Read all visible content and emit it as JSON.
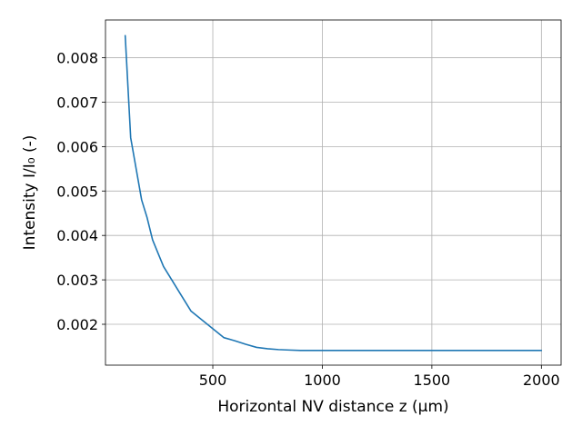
{
  "chart_data": {
    "type": "line",
    "title": "",
    "xlabel": "Horizontal NV distance z (μm)",
    "ylabel": "Intensity I/I₀ (-)",
    "xlim": [
      10,
      2090
    ],
    "ylim": [
      0.00108,
      0.00885
    ],
    "x_ticks": [
      500,
      1000,
      1500,
      2000
    ],
    "x_tick_labels": [
      "500",
      "1000",
      "1500",
      "2000"
    ],
    "y_ticks": [
      0.002,
      0.003,
      0.004,
      0.005,
      0.006,
      0.007,
      0.008
    ],
    "y_tick_labels": [
      "0.002",
      "0.003",
      "0.004",
      "0.005",
      "0.006",
      "0.007",
      "0.008"
    ],
    "grid": true,
    "legend": "none",
    "series": [
      {
        "color": "#1f77b4",
        "x": [
          100,
          125,
          150,
          175,
          200,
          225,
          250,
          275,
          300,
          350,
          400,
          450,
          500,
          550,
          600,
          650,
          700,
          750,
          800,
          850,
          900,
          1000,
          1200,
          1400,
          1600,
          1800,
          2000
        ],
        "y": [
          0.0085,
          0.0062,
          0.0055,
          0.0048,
          0.0044,
          0.0039,
          0.0036,
          0.0033,
          0.0031,
          0.0027,
          0.0023,
          0.0021,
          0.0019,
          0.0017,
          0.00163,
          0.00155,
          0.00148,
          0.00145,
          0.00143,
          0.00142,
          0.00141,
          0.00141,
          0.00141,
          0.00141,
          0.00141,
          0.00141,
          0.00141
        ]
      }
    ]
  }
}
